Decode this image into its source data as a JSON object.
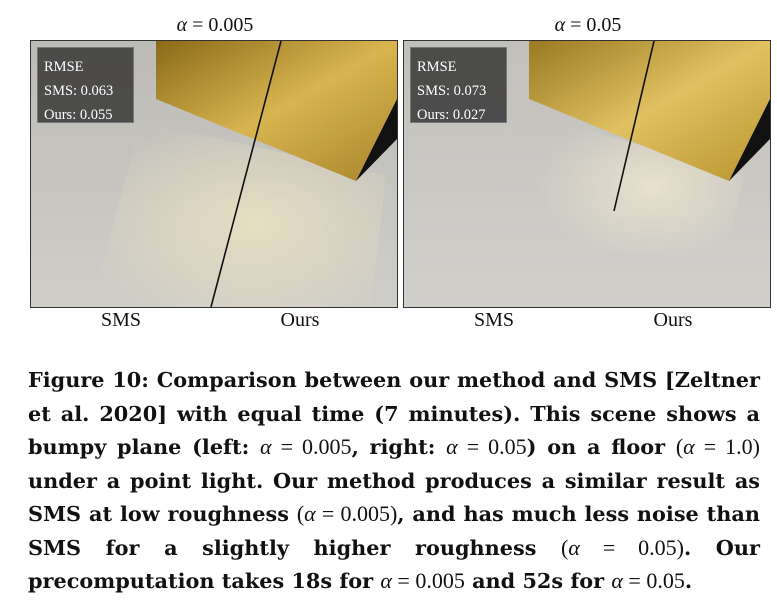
{
  "panels": [
    {
      "title_symbol": "α",
      "title_rest": " = 0.005",
      "rmse": {
        "heading": "RMSE",
        "sms": "SMS: 0.063",
        "ours": "Ours: 0.055"
      },
      "left_label": "SMS",
      "right_label": "Ours"
    },
    {
      "title_symbol": "α",
      "title_rest": " = 0.05",
      "rmse": {
        "heading": "RMSE",
        "sms": "SMS: 0.073",
        "ours": "Ours: 0.027"
      },
      "left_label": "SMS",
      "right_label": "Ours"
    }
  ],
  "caption": {
    "s1": "Figure 10: Comparison between our method and SMS [Zeltner et al. 2020] with equal time (7 minutes). This scene shows a bumpy plane (left: ",
    "m1_sym": "α",
    "m1_val": " = 0.005",
    "s2": ", right: ",
    "m2_sym": "α",
    "m2_val": " = 0.05",
    "s3": ") on a floor ",
    "m3_pre": "(",
    "m3_sym": "α",
    "m3_val": " = 1.0)",
    "s4": " under a point light. Our method produces a similar result as SMS at low roughness ",
    "m4_pre": "(",
    "m4_sym": "α",
    "m4_val": " = 0.005)",
    "s5": ", and has much less noise than SMS for a slightly higher roughness ",
    "m5_pre": "(",
    "m5_sym": "α",
    "m5_val": " = 0.05)",
    "s6": ". Our precomputation takes 18s for ",
    "m6_sym": "α",
    "m6_val": " = 0.005",
    "s7": " and 52s for ",
    "m7_sym": "α",
    "m7_val": " = 0.05",
    "s8": "."
  },
  "colors": {
    "gold": "#c9a53a",
    "floor": "#c8c6c0",
    "box_bg": "#323232"
  }
}
